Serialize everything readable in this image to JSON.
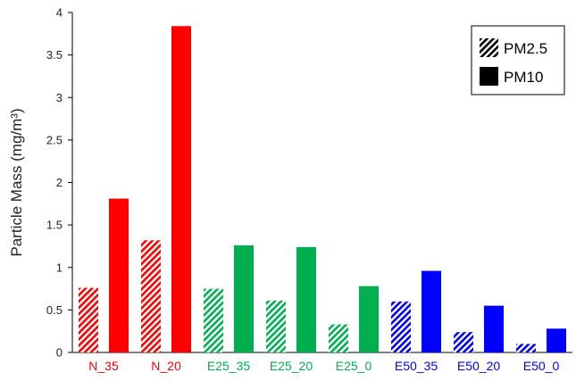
{
  "chart_data": {
    "type": "bar",
    "title": "",
    "xlabel": "",
    "ylabel": "Particle Mass (mg/m³)",
    "ylim": [
      0,
      4
    ],
    "yticks": [
      "0",
      "0.5",
      "1",
      "1.5",
      "2",
      "2.5",
      "3",
      "3.5",
      "4"
    ],
    "categories": [
      "N_35",
      "N_20",
      "E25_35",
      "E25_20",
      "E25_0",
      "E50_35",
      "E50_20",
      "E50_0"
    ],
    "category_colors": [
      "#ff0000",
      "#ff0000",
      "#00b050",
      "#00b050",
      "#00b050",
      "#0000ff",
      "#0000ff",
      "#0000ff"
    ],
    "series": [
      {
        "name": "PM2.5",
        "style": "hatched",
        "values": [
          0.76,
          1.32,
          0.75,
          0.61,
          0.33,
          0.6,
          0.24,
          0.1
        ]
      },
      {
        "name": "PM10",
        "style": "solid",
        "values": [
          1.81,
          3.84,
          1.26,
          1.24,
          0.78,
          0.96,
          0.55,
          0.28
        ]
      }
    ],
    "legend": {
      "position": "top-right",
      "swatch_color": "#000000"
    },
    "grid": false
  }
}
